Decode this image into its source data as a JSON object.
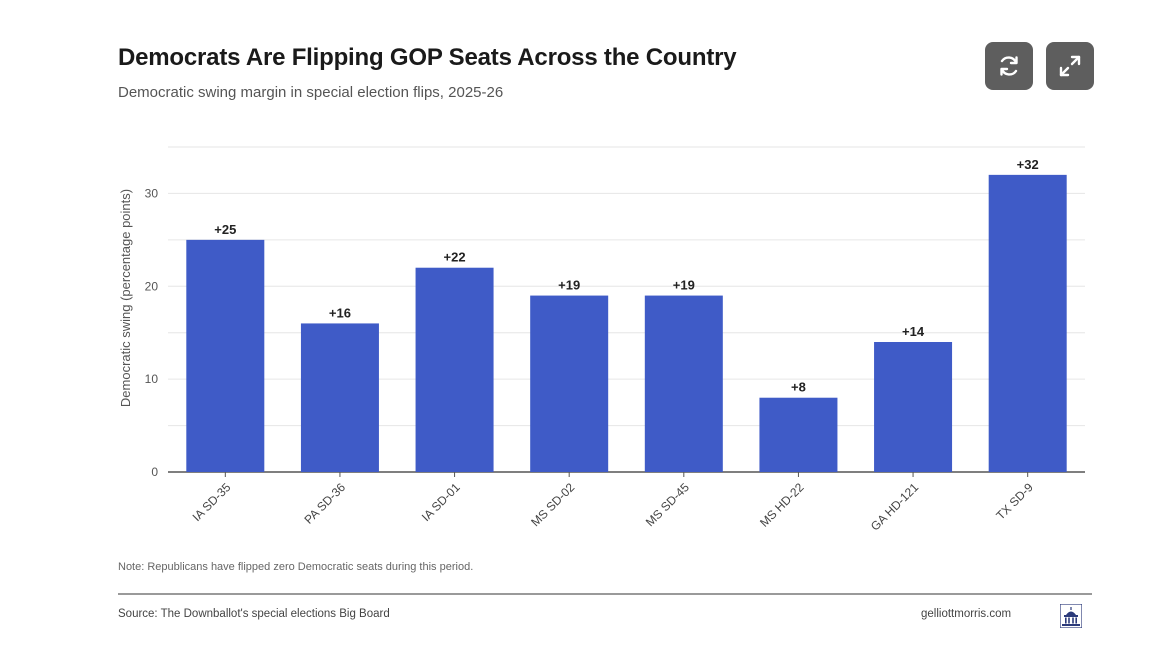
{
  "header": {
    "title": "Democrats Are Flipping GOP Seats Across the Country",
    "subtitle": "Democratic swing margin in special election flips, 2025-26"
  },
  "controls": {
    "refresh_icon": "refresh-icon",
    "expand_icon": "expand-icon"
  },
  "colors": {
    "bar": "#3f5bc7",
    "grid": "#e6e6e6",
    "axis": "#555555",
    "button": "#5e5e5e"
  },
  "chart_data": {
    "type": "bar",
    "title": "Democrats Are Flipping GOP Seats Across the Country",
    "subtitle": "Democratic swing margin in special election flips, 2025-26",
    "xlabel": "",
    "ylabel": "Democratic swing (percentage points)",
    "categories": [
      "IA SD-35",
      "PA SD-36",
      "IA SD-01",
      "MS SD-02",
      "MS SD-45",
      "MS HD-22",
      "GA HD-121",
      "TX SD-9"
    ],
    "values": [
      25,
      16,
      22,
      19,
      19,
      8,
      14,
      32
    ],
    "labels": [
      "+25",
      "+16",
      "+22",
      "+19",
      "+19",
      "+8",
      "+14",
      "+32"
    ],
    "yticks": [
      0,
      10,
      20,
      30
    ],
    "ylim": [
      0,
      35
    ],
    "grid": true,
    "legend": "none"
  },
  "footer": {
    "note": "Note: Republicans have flipped zero Democratic seats during this period.",
    "source": "Source: The Downballot's special elections Big Board",
    "site": "gelliottmorris.com",
    "logo_icon": "capitol-logo-icon"
  }
}
